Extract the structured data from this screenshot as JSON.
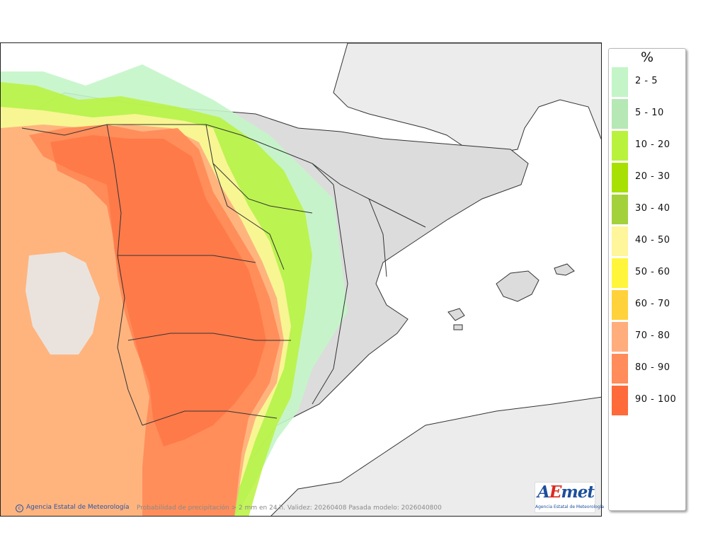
{
  "legend": {
    "unit": "%",
    "items": [
      {
        "label": "2 - 5",
        "color": "#c4f5c8"
      },
      {
        "label": "5 - 10",
        "color": "#b5e8b5"
      },
      {
        "label": "10 - 20",
        "color": "#b9f23c"
      },
      {
        "label": "20 - 30",
        "color": "#a8e003"
      },
      {
        "label": "30 - 40",
        "color": "#a3d13c"
      },
      {
        "label": "40 - 50",
        "color": "#fff59a"
      },
      {
        "label": "50 - 60",
        "color": "#fff53a"
      },
      {
        "label": "60 - 70",
        "color": "#ffd23c"
      },
      {
        "label": "70 - 80",
        "color": "#ffad7c"
      },
      {
        "label": "80 - 90",
        "color": "#ff8c5a"
      },
      {
        "label": "90 - 100",
        "color": "#ff6a3a"
      }
    ]
  },
  "footer": {
    "credit": "Agencia Estatal de Meteorología",
    "caption": "Probabilidad de precipitación > 2 mm en 24 h. Validez: 20260408 Pasada modelo: 2026040800"
  },
  "logo": {
    "word_a": "A",
    "word_e": "E",
    "word_rest": "met",
    "subtitle": "Agencia Estatal de Meteorología"
  },
  "map": {
    "sea_color": "#ffffff",
    "foreign_land_color": "#ececec",
    "spain_land_color": "#dcdcdc",
    "border_color": "#333333"
  }
}
